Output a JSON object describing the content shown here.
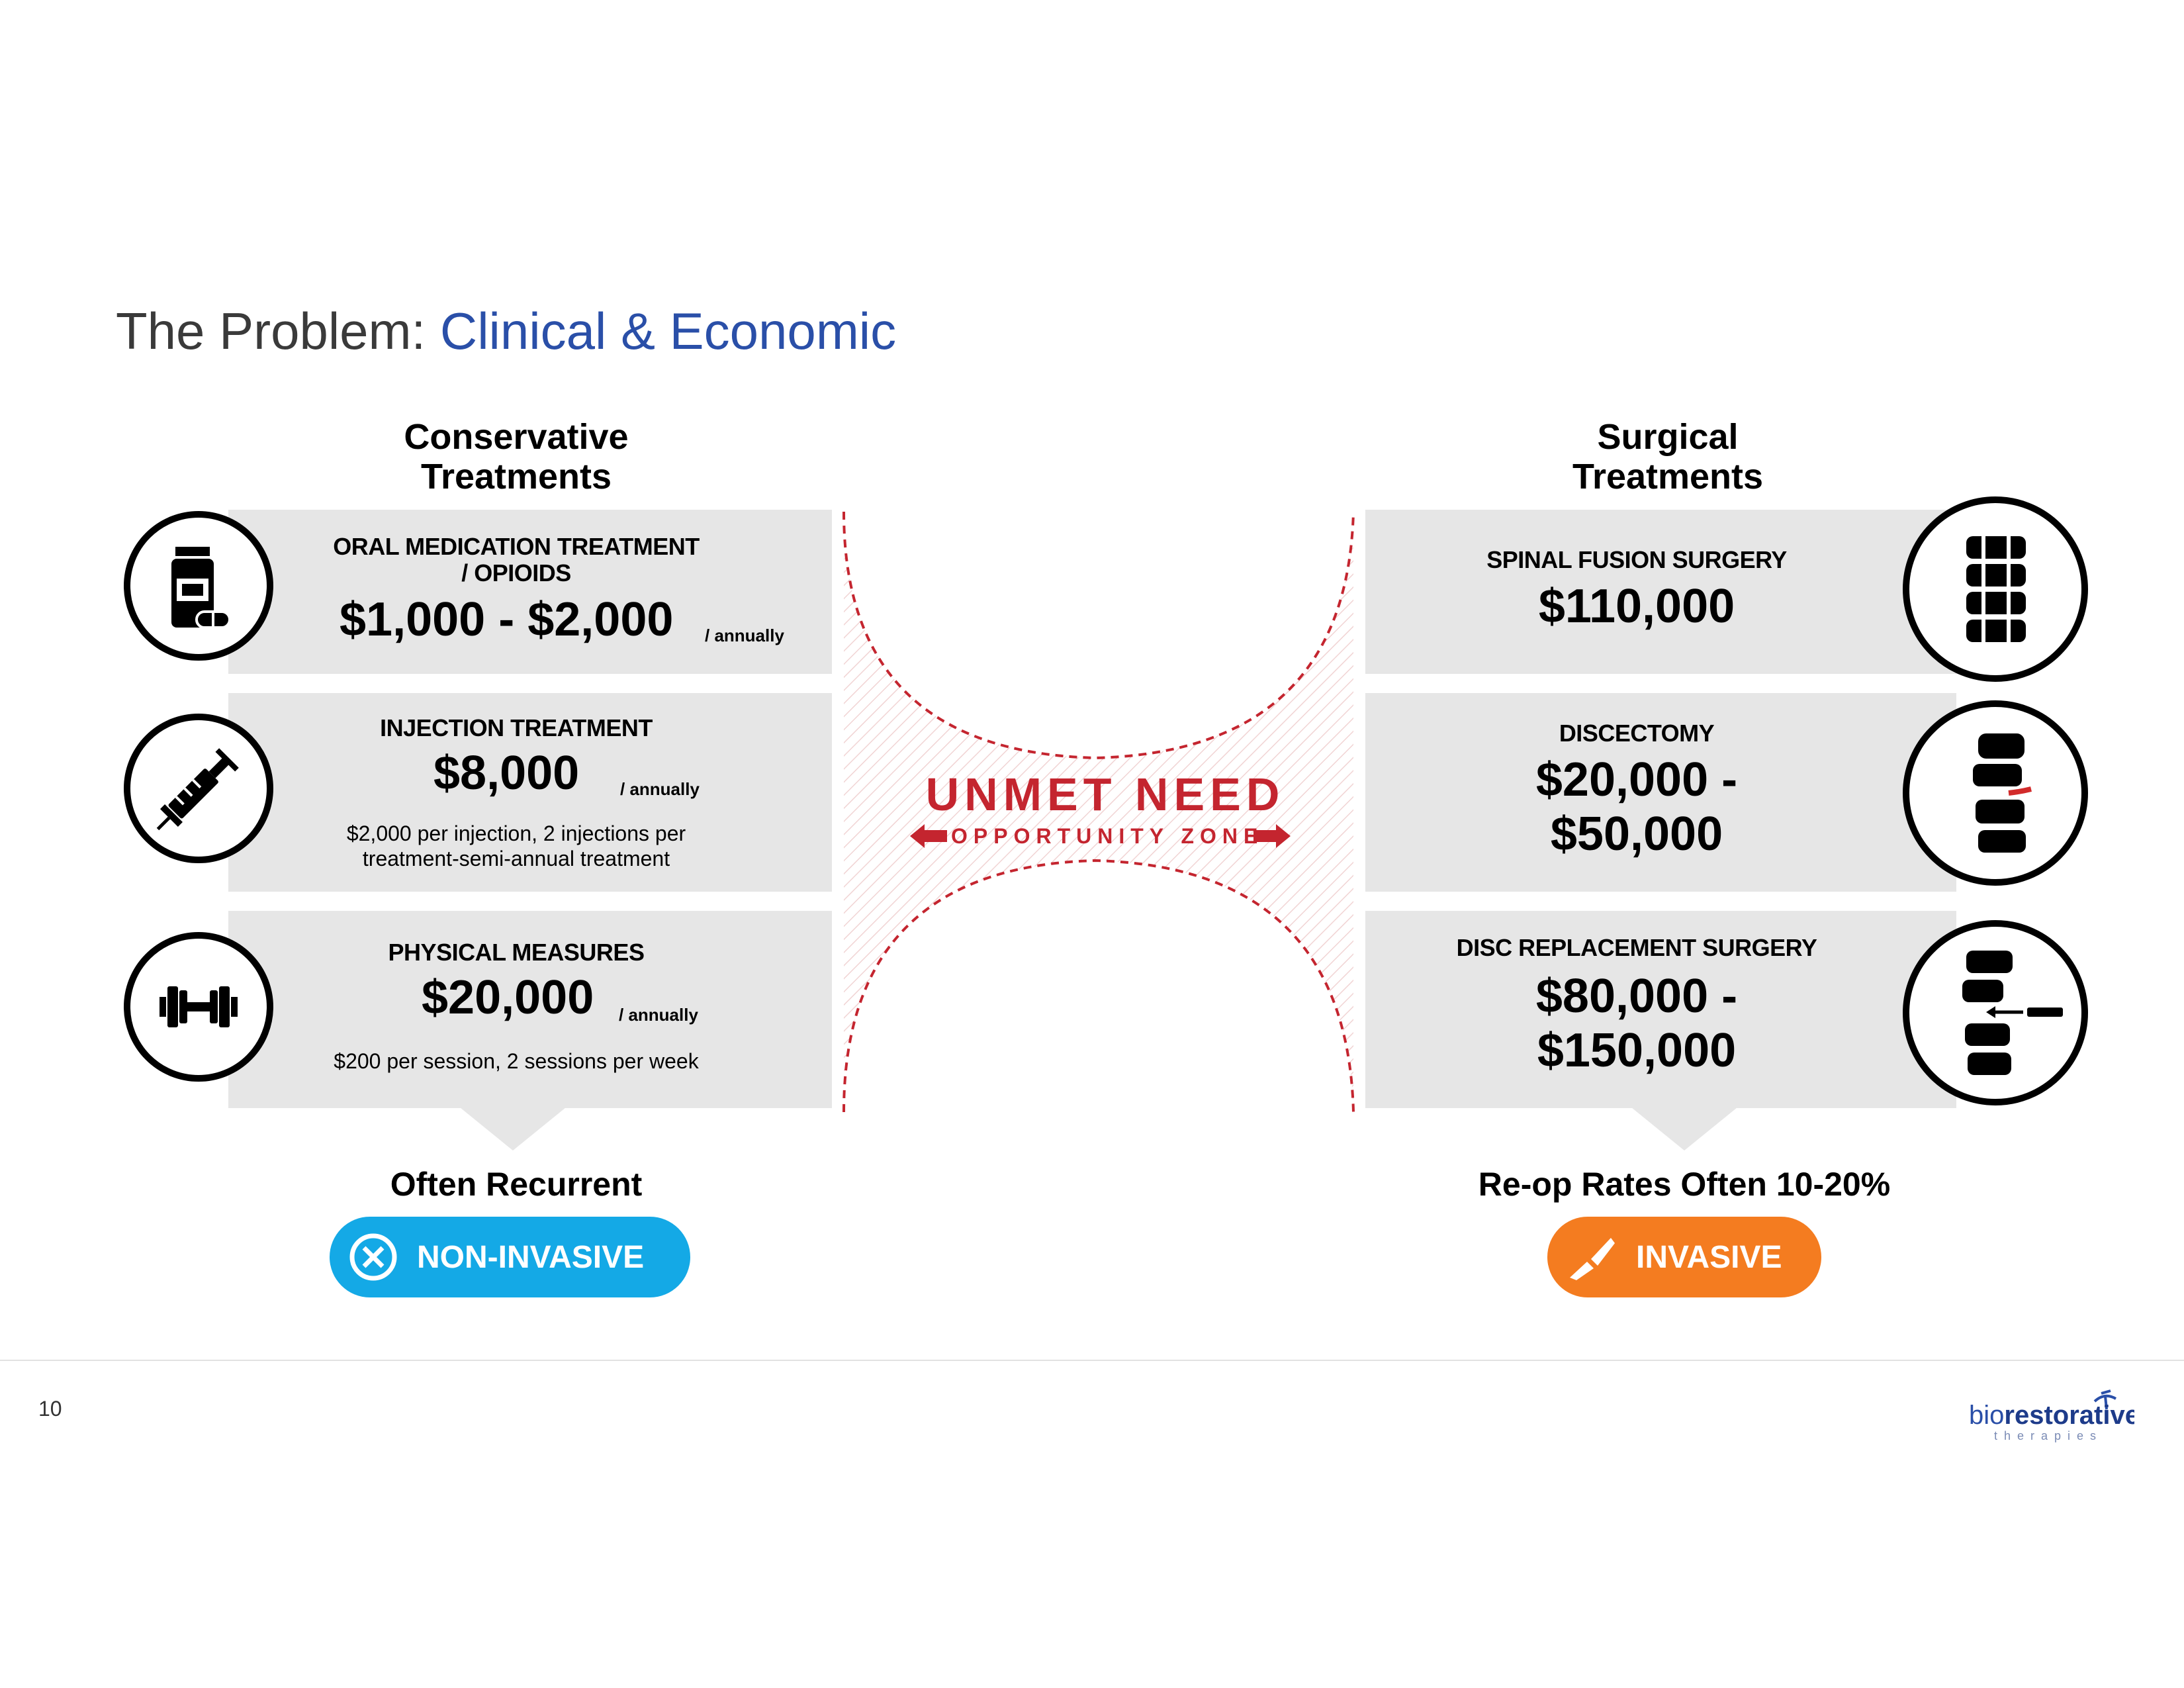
{
  "title": {
    "prefix": "The Problem: ",
    "accent": "Clinical & Economic",
    "accent_color": "#2a4fa8"
  },
  "conservative": {
    "heading_line1": "Conservative",
    "heading_line2": "Treatments",
    "items": [
      {
        "icon": "pill-bottle-icon",
        "caption_line1": "ORAL MEDICATION TREATMENT",
        "caption_line2": "/ OPIOIDS",
        "price": "$1,000 - $2,000",
        "per": "/ annually"
      },
      {
        "icon": "syringe-icon",
        "caption_line1": "INJECTION TREATMENT",
        "price": "$8,000",
        "per": "/ annually",
        "note_line1": "$2,000 per injection, 2 injections per",
        "note_line2": "treatment-semi-annual treatment"
      },
      {
        "icon": "dumbbell-icon",
        "caption_line1": "PHYSICAL MEASURES",
        "price": "$20,000",
        "per": "/ annually",
        "note_line1": "$200 per session, 2 sessions per week"
      }
    ],
    "footer_heading": "Often Recurrent",
    "badge": {
      "label": "NON-INVASIVE",
      "icon": "x-circle-icon",
      "color": "#14a9e6"
    }
  },
  "surgical": {
    "heading_line1": "Surgical",
    "heading_line2": "Treatments",
    "items": [
      {
        "icon": "spine-fusion-icon",
        "caption_line1": "SPINAL FUSION SURGERY",
        "price_line1": "$110,000"
      },
      {
        "icon": "spine-disc-icon",
        "caption_line1": "DISCECTOMY",
        "price_line1": "$20,000 -",
        "price_line2": "$50,000"
      },
      {
        "icon": "spine-replacement-icon",
        "caption_line1": "DISC REPLACEMENT SURGERY",
        "price_line1": "$80,000 -",
        "price_line2": "$150,000"
      }
    ],
    "footer_heading": "Re-op Rates Often 10-20%",
    "badge": {
      "label": "INVASIVE",
      "icon": "scalpel-icon",
      "color": "#f47c20"
    }
  },
  "center": {
    "headline": "UNMET NEED",
    "subline": "OPPORTUNITY ZONE",
    "color": "#c4252f"
  },
  "footer": {
    "page_number": "10",
    "logo_text_main": "biorestorative",
    "logo_text_sub": "therapies"
  }
}
